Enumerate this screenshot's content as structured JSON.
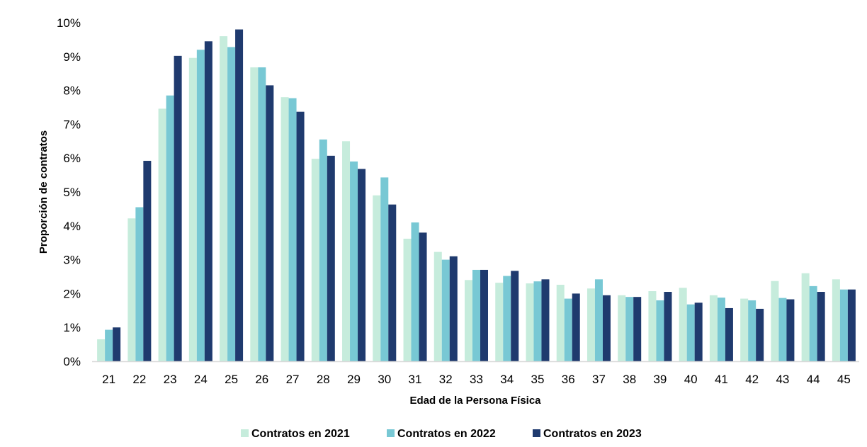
{
  "chart_data": {
    "type": "bar",
    "title": "",
    "xlabel": "Edad de la Persona Física",
    "ylabel": "Proporción de contratos",
    "ylim": [
      0,
      10
    ],
    "y_ticks": [
      "0%",
      "1%",
      "2%",
      "3%",
      "4%",
      "5%",
      "6%",
      "7%",
      "8%",
      "9%",
      "10%"
    ],
    "grid": false,
    "legend_position": "bottom",
    "categories": [
      "21",
      "22",
      "23",
      "24",
      "25",
      "26",
      "27",
      "28",
      "29",
      "30",
      "31",
      "32",
      "33",
      "34",
      "35",
      "36",
      "37",
      "38",
      "39",
      "40",
      "41",
      "42",
      "43",
      "44",
      "45"
    ],
    "series": [
      {
        "name": "Contratos en 2021",
        "color": "#c6ecdc",
        "values": [
          0.65,
          4.22,
          7.46,
          8.96,
          9.6,
          8.68,
          7.8,
          5.98,
          6.5,
          4.9,
          3.62,
          3.23,
          2.4,
          2.32,
          2.3,
          2.26,
          2.15,
          1.95,
          2.07,
          2.17,
          1.95,
          1.85,
          2.37,
          2.6,
          2.42
        ]
      },
      {
        "name": "Contratos en 2022",
        "color": "#78c8d4",
        "values": [
          0.93,
          4.55,
          7.85,
          9.2,
          9.28,
          8.68,
          7.77,
          6.55,
          5.9,
          5.43,
          4.1,
          3.0,
          2.7,
          2.52,
          2.36,
          1.85,
          2.42,
          1.9,
          1.8,
          1.68,
          1.88,
          1.8,
          1.87,
          2.22,
          2.12
        ]
      },
      {
        "name": "Contratos en 2023",
        "color": "#1f3a6e",
        "values": [
          1.0,
          5.92,
          9.02,
          9.45,
          9.8,
          8.15,
          7.37,
          6.07,
          5.68,
          4.63,
          3.8,
          3.1,
          2.7,
          2.67,
          2.42,
          2.0,
          1.95,
          1.9,
          2.05,
          1.73,
          1.57,
          1.55,
          1.83,
          2.05,
          2.12
        ]
      }
    ]
  }
}
